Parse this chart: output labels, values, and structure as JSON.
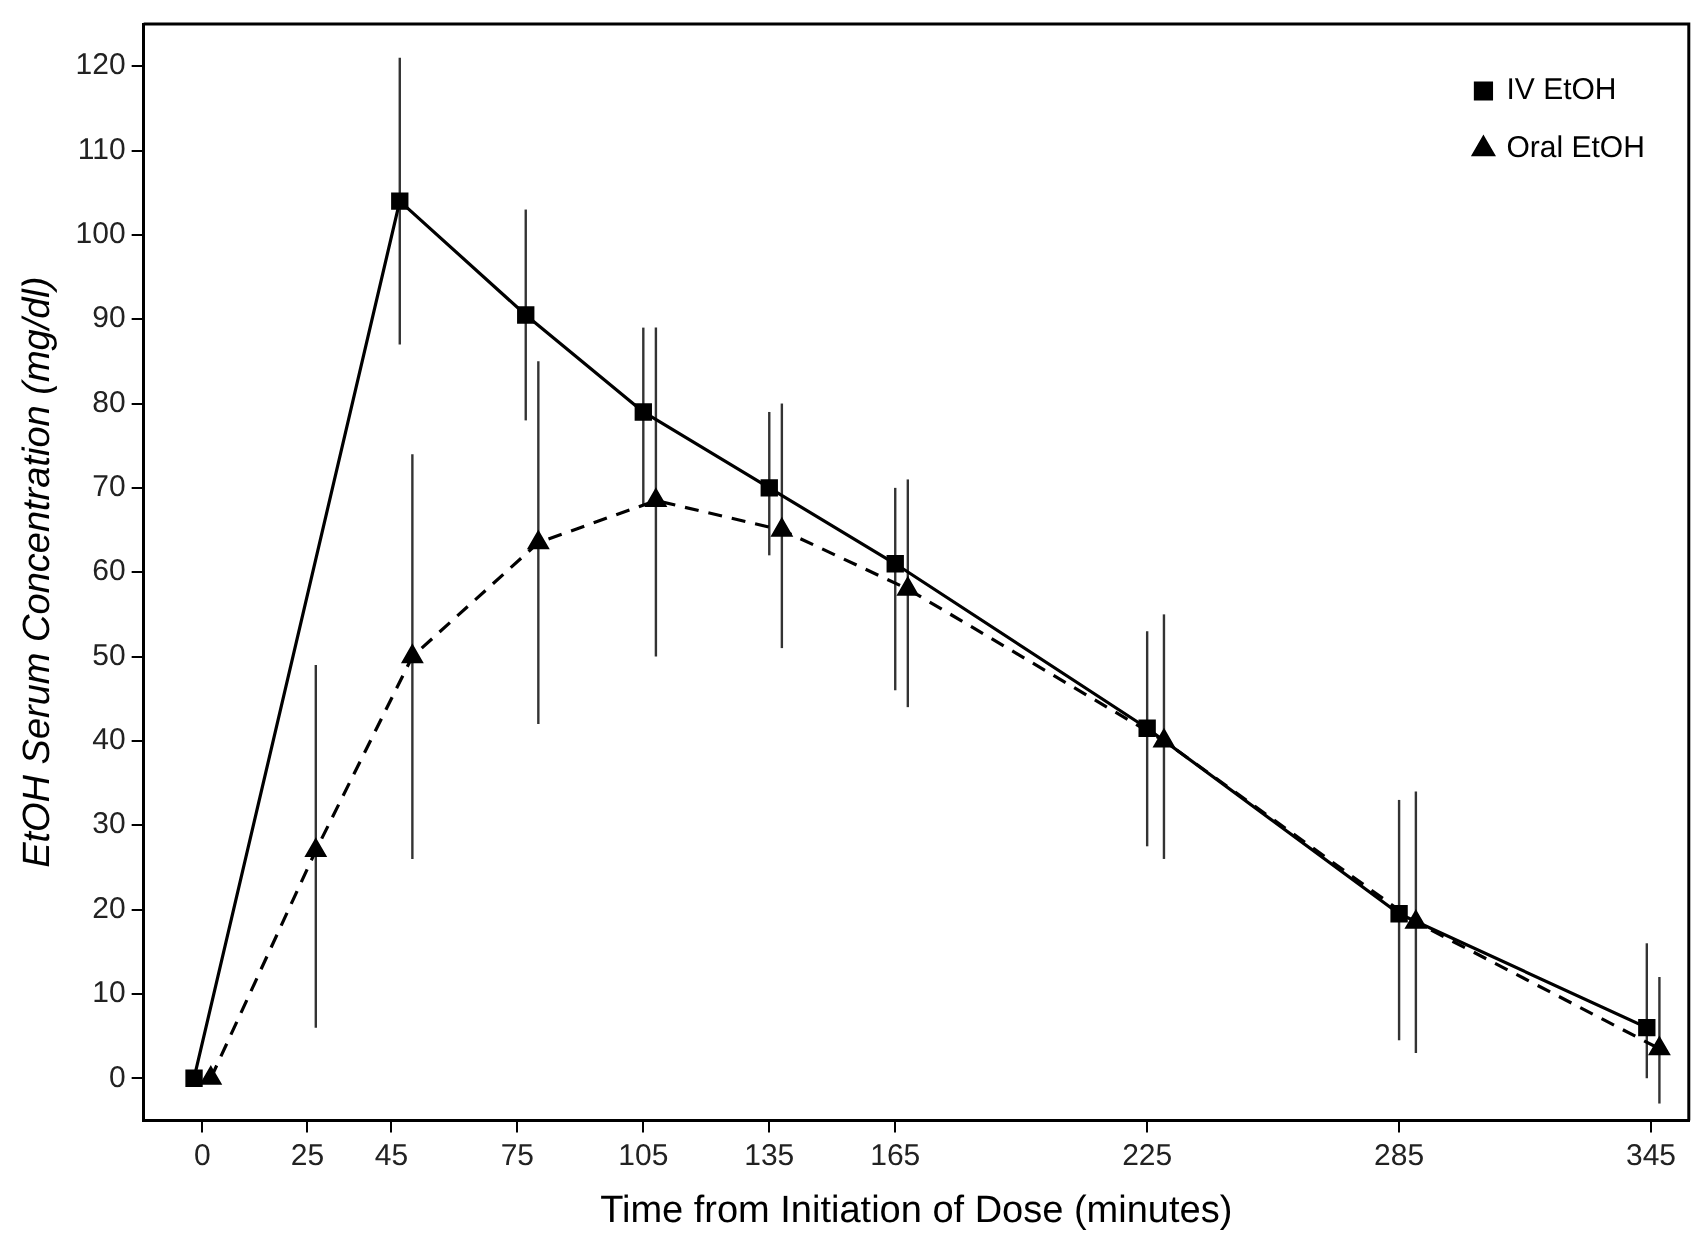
{
  "chart_data": {
    "type": "line",
    "xlabel": "Time from Initiation of Dose (minutes)",
    "ylabel": "EtOH Serum Concentration (mg/dl)",
    "xlim": [
      -14,
      354
    ],
    "xticks": [
      0,
      25,
      45,
      75,
      105,
      135,
      165,
      225,
      285,
      345
    ],
    "ylim": [
      -5,
      125
    ],
    "yticks": [
      0,
      10,
      20,
      30,
      40,
      50,
      60,
      70,
      80,
      90,
      100,
      110,
      120
    ],
    "grid": false,
    "legend": "top right",
    "series": [
      {
        "name": "IV EtOH",
        "color": "#000000",
        "marker": "square",
        "line_style": "solid",
        "x": [
          -2,
          47,
          77,
          105,
          135,
          165,
          225,
          285,
          344
        ],
        "values": [
          0,
          104,
          90.5,
          79,
          70,
          61,
          41.5,
          19.5,
          6
        ],
        "errors": [
          null,
          [
            87,
            121
          ],
          [
            78,
            103
          ],
          [
            68,
            89
          ],
          [
            62,
            79
          ],
          [
            46,
            70
          ],
          [
            27.5,
            53
          ],
          [
            4.5,
            33
          ],
          [
            0,
            16
          ]
        ]
      },
      {
        "name": "Oral EtOH",
        "color": "#000000",
        "marker": "triangle",
        "line_style": "dashed",
        "x": [
          2,
          27,
          50,
          80,
          108,
          138,
          168,
          229,
          289,
          347
        ],
        "values": [
          0,
          27,
          50,
          63.5,
          68.5,
          65,
          58,
          40,
          18.5,
          3.5
        ],
        "errors": [
          null,
          [
            6,
            49
          ],
          [
            26,
            74
          ],
          [
            42,
            85
          ],
          [
            50,
            89
          ],
          [
            51,
            80
          ],
          [
            44,
            71
          ],
          [
            26,
            55
          ],
          [
            3,
            34
          ],
          [
            -3,
            12
          ]
        ]
      }
    ]
  }
}
